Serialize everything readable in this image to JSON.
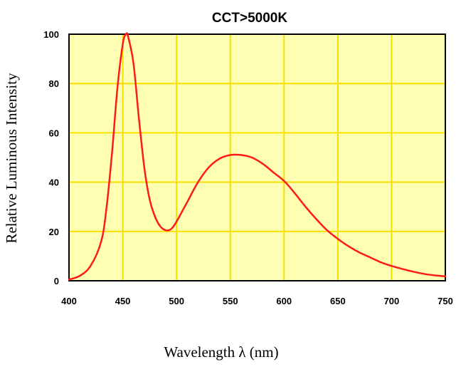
{
  "chart_data": {
    "type": "line",
    "title": "CCT>5000K",
    "xlabel": "Wavelength λ (nm)",
    "ylabel": "Relative Luminous Intensity",
    "xlim": [
      400,
      750
    ],
    "ylim": [
      0,
      100
    ],
    "x_ticks": [
      400,
      450,
      500,
      550,
      600,
      650,
      700,
      750
    ],
    "y_ticks": [
      0,
      20,
      40,
      60,
      80,
      100
    ],
    "grid": true,
    "colors": {
      "plot_background": "#ffffb3",
      "grid": "#f5e000",
      "line": "#ff1a1a"
    },
    "series": [
      {
        "x": [
          400,
          410,
          420,
          430,
          435,
          440,
          445,
          450,
          453,
          455,
          460,
          465,
          470,
          475,
          480,
          485,
          490,
          495,
          500,
          510,
          520,
          530,
          540,
          550,
          560,
          570,
          580,
          590,
          600,
          610,
          620,
          630,
          640,
          650,
          660,
          670,
          680,
          690,
          700,
          710,
          720,
          730,
          740,
          750
        ],
        "y": [
          0.5,
          2,
          6,
          16,
          30,
          52,
          78,
          96,
          100,
          99,
          88,
          66,
          46,
          33,
          26,
          22,
          20.5,
          21,
          24,
          32,
          40,
          46,
          49.5,
          51,
          51,
          50,
          47.5,
          44,
          40.5,
          35.5,
          30,
          25,
          20.5,
          17,
          14,
          11.5,
          9.5,
          7.5,
          6,
          4.8,
          3.7,
          2.8,
          2.2,
          1.8
        ]
      }
    ]
  }
}
